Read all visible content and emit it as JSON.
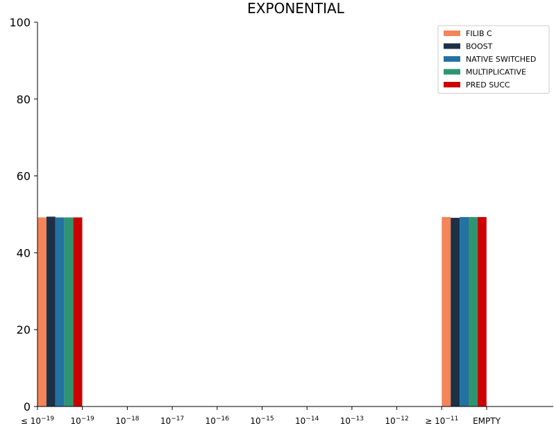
{
  "chart_data": {
    "type": "bar",
    "title": "EXPONENTIAL",
    "xlabel": "",
    "ylabel": "",
    "ylim": [
      0,
      100
    ],
    "yticks": [
      0,
      20,
      40,
      60,
      80,
      100
    ],
    "categories": [
      {
        "base": "≤ 10",
        "exp": "−19"
      },
      {
        "base": "10",
        "exp": "−19"
      },
      {
        "base": "10",
        "exp": "−18"
      },
      {
        "base": "10",
        "exp": "−17"
      },
      {
        "base": "10",
        "exp": "−16"
      },
      {
        "base": "10",
        "exp": "−15"
      },
      {
        "base": "10",
        "exp": "−14"
      },
      {
        "base": "10",
        "exp": "−13"
      },
      {
        "base": "10",
        "exp": "−12"
      },
      {
        "base": "≥ 10",
        "exp": "−11"
      },
      {
        "base": "EMPTY",
        "exp": ""
      }
    ],
    "series": [
      {
        "name": "FILIB C",
        "color": "#f4845a",
        "values": [
          49.2,
          0,
          0,
          0,
          0,
          0,
          0,
          0,
          0,
          49.3,
          0
        ]
      },
      {
        "name": "BOOST",
        "color": "#1c3146",
        "values": [
          49.4,
          0,
          0,
          0,
          0,
          0,
          0,
          0,
          0,
          49.1,
          0
        ]
      },
      {
        "name": "NATIVE SWITCHED",
        "color": "#2471a3",
        "values": [
          49.2,
          0,
          0,
          0,
          0,
          0,
          0,
          0,
          0,
          49.3,
          0
        ]
      },
      {
        "name": "MULTIPLICATIVE",
        "color": "#2f9570",
        "values": [
          49.2,
          0,
          0,
          0,
          0,
          0,
          0,
          0,
          0,
          49.3,
          0
        ]
      },
      {
        "name": "PRED SUCC",
        "color": "#cc0000",
        "values": [
          49.2,
          0,
          0,
          0,
          0,
          0,
          0,
          0,
          0,
          49.3,
          0
        ]
      }
    ],
    "grid": false,
    "legend_position": "top-right"
  }
}
